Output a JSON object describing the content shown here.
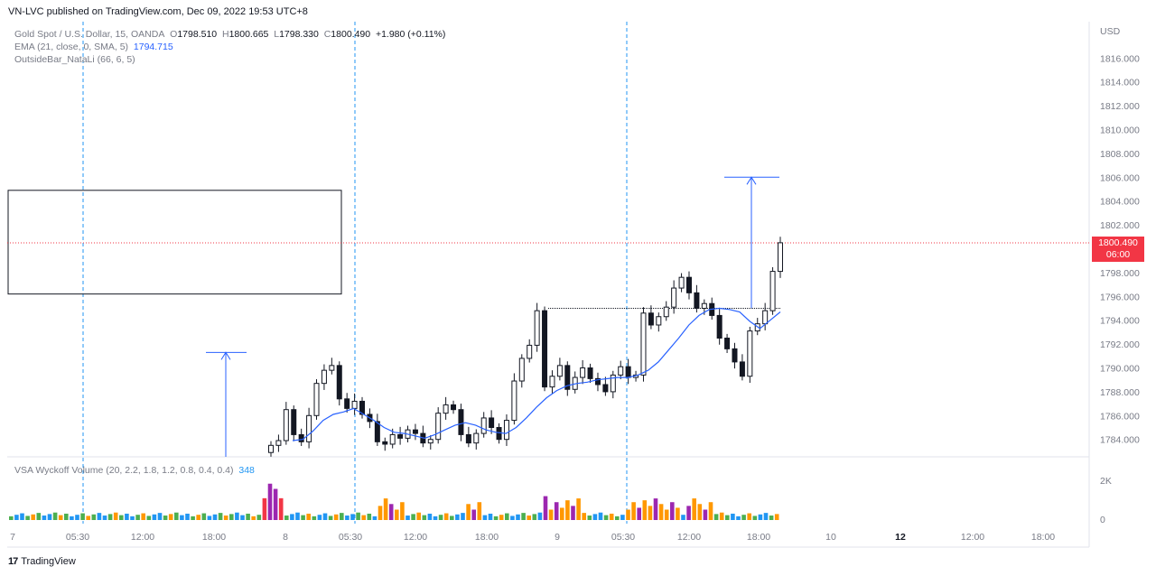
{
  "publisher_line": "VN-LVC published on TradingView.com, Dec 09, 2022 19:53 UTC+8",
  "legend": {
    "symbol": "Gold Spot / U.S. Dollar, 15, OANDA",
    "o_label": "O",
    "o": "1798.510",
    "h_label": "H",
    "h": "1800.665",
    "l_label": "L",
    "l": "1798.330",
    "c_label": "C",
    "c": "1800.490",
    "change": "+1.980 (+0.11%)",
    "ema_label": "EMA (21, close, 0, SMA, 5)",
    "ema_value": "1794.715",
    "outside_bar_label": "OutsideBar_NataLi (66, 6, 5)",
    "vsa_label": "VSA Wyckoff Volume (20, 2.2, 1.8, 1.2, 0.8, 0.4, 0.4)",
    "vsa_value": "348"
  },
  "price_tag": {
    "price": "1800.490",
    "countdown": "06:00"
  },
  "footer": {
    "logo": "17",
    "brand": "TradingView"
  },
  "colors": {
    "up": "#26a69a",
    "down": "#131722",
    "ema": "#2962ff",
    "grid": "#e0e3eb",
    "vline": "#2196f3",
    "price_line": "#f23645",
    "vol_green": "#4caf50",
    "vol_blue": "#2196f3",
    "vol_orange": "#ff9800",
    "vol_purple": "#9c27b0",
    "vol_red": "#f23645"
  },
  "chart_data": {
    "type": "candlestick",
    "currency": "USD",
    "y_ticks": [
      "1816.000",
      "1814.000",
      "1812.000",
      "1810.000",
      "1808.000",
      "1806.000",
      "1804.000",
      "1802.000",
      "1798.000",
      "1796.000",
      "1794.000",
      "1792.000",
      "1790.000",
      "1788.000",
      "1786.000",
      "1784.000"
    ],
    "volume_ticks": [
      "2K",
      "0"
    ],
    "x_ticks": [
      "7",
      "05:30",
      "12:00",
      "18:00",
      "8",
      "05:30",
      "12:00",
      "18:00",
      "9",
      "05:30",
      "12:00",
      "18:00",
      "10",
      "12",
      "12:00",
      "18:00"
    ],
    "x_ticks_bold": [
      "12"
    ],
    "ylim": [
      1782.5,
      1817.5
    ],
    "last_price": 1800.49,
    "closes": [
      1783.5,
      1783.9,
      1786.5,
      1784.4,
      1783.8,
      1786.0,
      1788.7,
      1789.8,
      1790.2,
      1787.4,
      1786.6,
      1787.2,
      1786.1,
      1785.5,
      1783.8,
      1783.6,
      1784.4,
      1784.1,
      1784.8,
      1784.5,
      1783.7,
      1784.0,
      1786.2,
      1786.9,
      1786.5,
      1784.4,
      1783.7,
      1784.5,
      1785.8,
      1785.0,
      1784.0,
      1785.6,
      1788.9,
      1790.8,
      1791.9,
      1794.8,
      1788.4,
      1789.3,
      1790.2,
      1788.2,
      1789.2,
      1790.0,
      1789.1,
      1788.6,
      1788.0,
      1789.4,
      1790.1,
      1789.2,
      1789.4,
      1794.6,
      1793.6,
      1794.3,
      1795.1,
      1796.7,
      1797.6,
      1796.3,
      1795.0,
      1795.4,
      1794.4,
      1792.5,
      1791.6,
      1790.5,
      1789.3,
      1793.1,
      1793.7,
      1794.8,
      1798.1,
      1800.5
    ],
    "ema": [
      1783.9,
      1784.0,
      1784.7,
      1785.6,
      1786.1,
      1786.3,
      1786.6,
      1786.1,
      1785.6,
      1785.0,
      1784.6,
      1784.5,
      1784.3,
      1784.1,
      1784.4,
      1784.8,
      1785.2,
      1785.4,
      1785.2,
      1784.8,
      1784.6,
      1784.5,
      1785.0,
      1785.8,
      1786.7,
      1787.5,
      1788.1,
      1788.5,
      1788.7,
      1788.8,
      1789.0,
      1789.1,
      1789.2,
      1789.2,
      1789.4,
      1789.8,
      1790.5,
      1791.5,
      1792.5,
      1793.6,
      1794.4,
      1794.9,
      1795.0,
      1794.9,
      1794.7,
      1793.9,
      1793.3,
      1794.0,
      1794.7
    ],
    "volume_max": 2000,
    "annotations": [
      {
        "type": "rectangle",
        "price_top": 1804.9,
        "price_bottom": 1796.2
      },
      {
        "type": "arrow",
        "price_from": 1782.5,
        "price_to": 1791.3
      },
      {
        "type": "arrow",
        "price_from": 1795.0,
        "price_to": 1806.0
      },
      {
        "type": "hline",
        "price": 1795.0
      }
    ]
  }
}
